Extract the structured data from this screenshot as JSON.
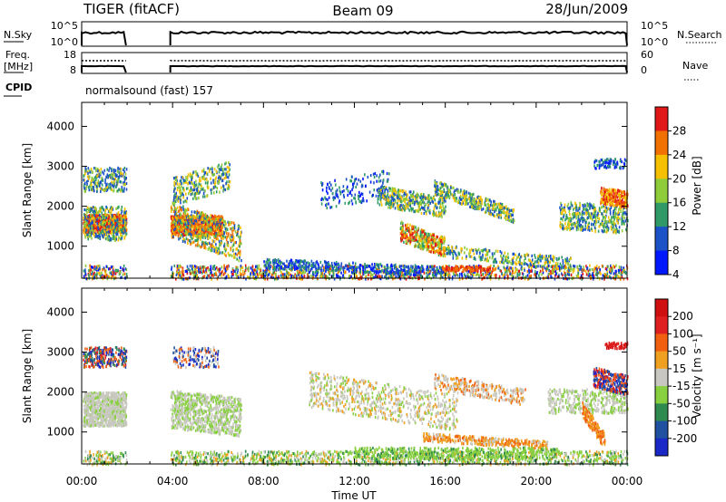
{
  "header": {
    "radar": "TIGER (fitACF)",
    "beam": "Beam 09",
    "date": "28/Jun/2009"
  },
  "panels": {
    "nsky_label": "N.Sky",
    "nsearch_label": "N.Search",
    "nsky_ticks": [
      "10^5",
      "10^0"
    ],
    "nsearch_ticks": [
      "10^5",
      "10^0"
    ],
    "freq_label_1": "Freq.",
    "freq_label_2": "[MHz]",
    "freq_ticks": [
      "18",
      "8"
    ],
    "nave_label": "Nave",
    "nave_ticks": [
      "60",
      "0"
    ],
    "cpid_label": "CPID",
    "cpid_text": "normalsound (fast) 157"
  },
  "chart_data": [
    {
      "type": "heatmap",
      "name": "power",
      "ylabel": "Slant Range [km]",
      "y_ticks": [
        "1000",
        "2000",
        "3000",
        "4000"
      ],
      "ylim": [
        200,
        4600
      ],
      "x_ticks": [
        "00:00",
        "04:00",
        "08:00",
        "12:00",
        "16:00",
        "20:00",
        "00:00"
      ],
      "colorbar": {
        "label": "Power [dB]",
        "ticks": [
          "4",
          "8",
          "12",
          "16",
          "20",
          "24",
          "28"
        ],
        "colors": [
          "#0018ff",
          "#1c52c8",
          "#2f9a68",
          "#8fcc3a",
          "#f5c000",
          "#f07000",
          "#e01818"
        ]
      }
    },
    {
      "type": "heatmap",
      "name": "velocity",
      "ylabel": "Slant Range [km]",
      "y_ticks": [
        "1000",
        "2000",
        "3000",
        "4000"
      ],
      "ylim": [
        200,
        4600
      ],
      "x_ticks": [
        "00:00",
        "04:00",
        "08:00",
        "12:00",
        "16:00",
        "20:00",
        "00:00"
      ],
      "xlabel": "Time UT",
      "colorbar": {
        "label": "Velocity [m s⁻¹]",
        "ticks": [
          "200",
          "100",
          "50",
          "15",
          "-15",
          "-50",
          "-100",
          "-200"
        ],
        "colors": [
          "#1a28c8",
          "#2050a0",
          "#2f8a50",
          "#88d040",
          "#c8c8c0",
          "#f0a020",
          "#f06010",
          "#e02020",
          "#d01010"
        ]
      }
    }
  ]
}
